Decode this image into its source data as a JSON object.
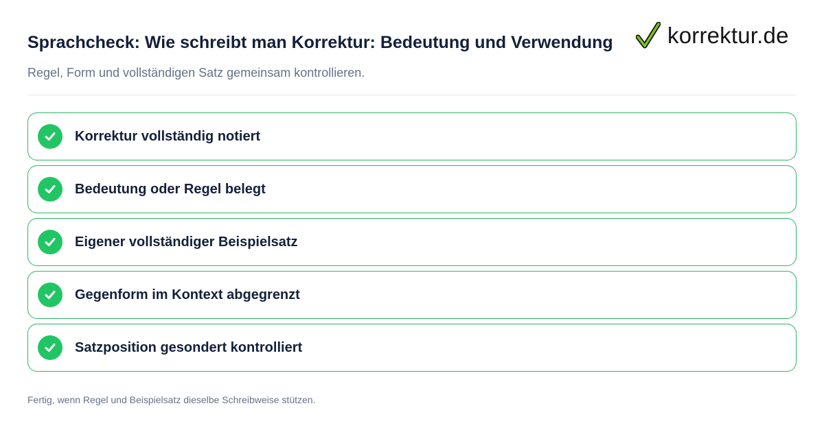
{
  "header": {
    "title": "Sprachcheck: Wie schreibt man Korrektur: Bedeutung und Verwendung",
    "subtitle": "Regel, Form und vollständigen Satz gemeinsam kontrollieren."
  },
  "logo": {
    "icon": "checkmark-icon",
    "text": "korrektur.de",
    "accent_color": "#7cc417"
  },
  "checklist": {
    "items": [
      {
        "label": "Korrektur vollständig notiert",
        "checked": true
      },
      {
        "label": "Bedeutung oder Regel belegt",
        "checked": true
      },
      {
        "label": "Eigener vollständiger Beispielsatz",
        "checked": true
      },
      {
        "label": "Gegenform im Kontext abgegrenzt",
        "checked": true
      },
      {
        "label": "Satzposition gesondert kontrolliert",
        "checked": true
      }
    ],
    "check_color": "#22c564",
    "border_color": "#29b866"
  },
  "footer": {
    "note": "Fertig, wenn Regel und Beispielsatz dieselbe Schreibweise stützen."
  }
}
